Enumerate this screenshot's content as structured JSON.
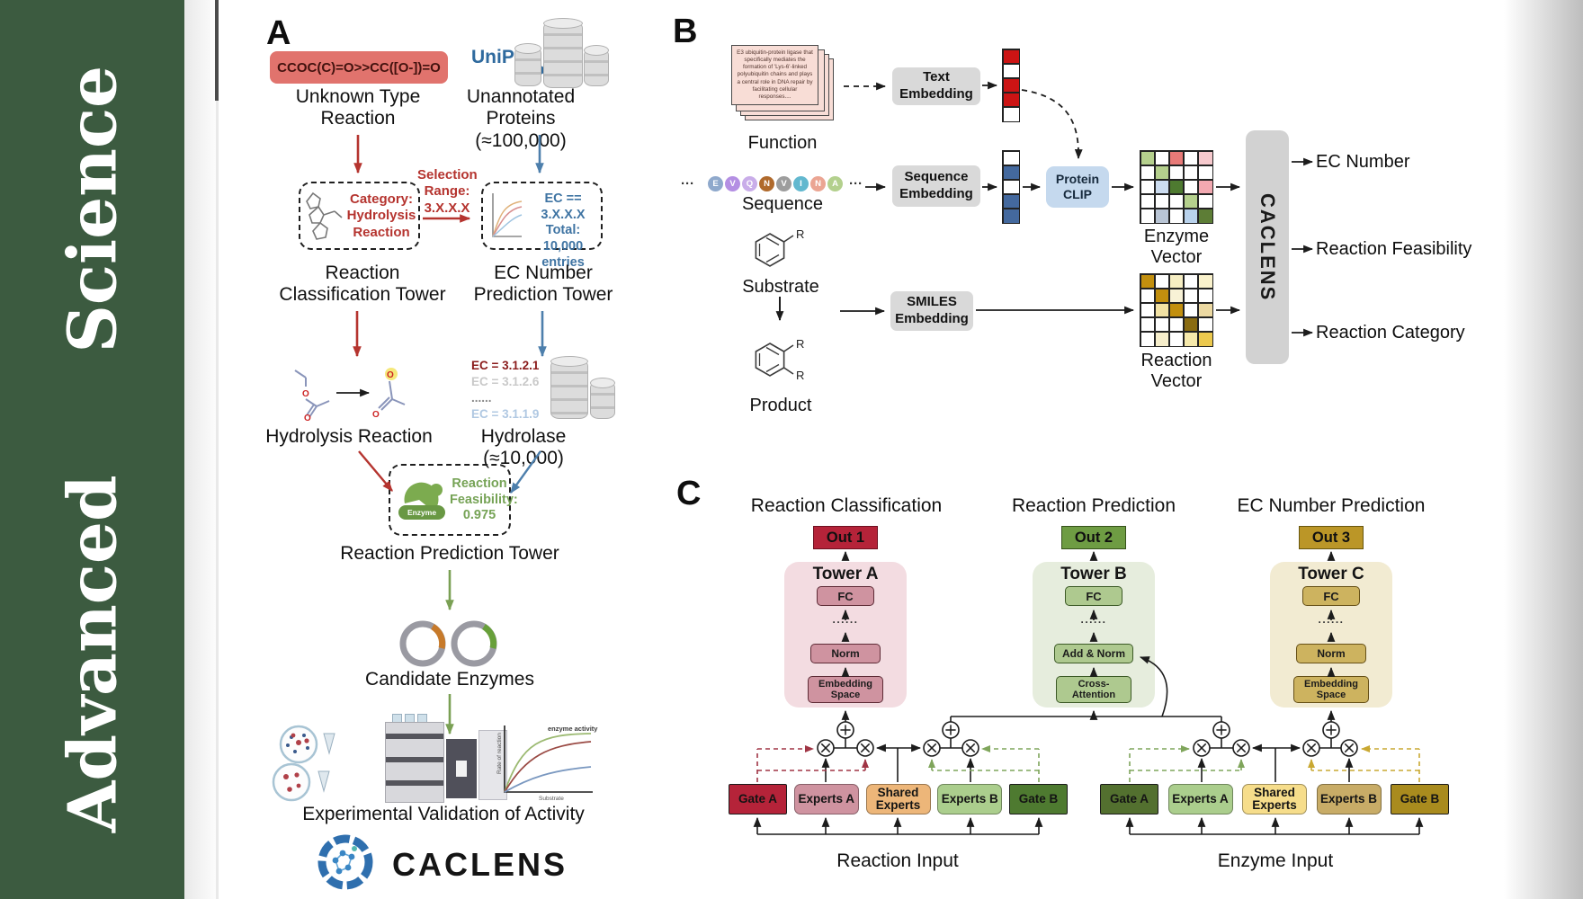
{
  "journal": {
    "name": "Advanced Science",
    "bar_color": "#3c5b40"
  },
  "panelA": {
    "label": "A",
    "smiles": "CCOC(C)=O>>CC([O-])=O",
    "unknown_reaction": "Unknown Type\nReaction",
    "uniprot": "UniProt",
    "unannotated": "Unannotated\nProteins (≈100,000)",
    "category_box": "Category:\nHydrolysis\nReaction",
    "selection": "Selection\nRange:\n3.X.X.X",
    "ec_box": "EC == 3.X.X.X\nTotal: 10,000\nentries",
    "classification_tower": "Reaction\nClassification Tower",
    "ec_tower": "EC Number\nPrediction Tower",
    "hydrolysis": "Hydrolysis Reaction",
    "ec_list": [
      {
        "text": "EC = 3.1.2.1",
        "color": "#8a1b1b"
      },
      {
        "text": "EC = 3.1.2.6",
        "color": "#c9c9c9"
      },
      {
        "text": "......",
        "color": "#8a8a8a"
      },
      {
        "text": "EC = 3.1.1.9",
        "color": "#b0c8e2"
      }
    ],
    "hydrolase": "Hydrolase (≈10,000)",
    "enzyme_icon_label": "Enzyme",
    "feasibility": "Reaction\nFeasibility:\n0.975",
    "prediction_tower": "Reaction Prediction Tower",
    "candidate": "Candidate Enzymes",
    "graph": {
      "ylabel": "Rate of reaction",
      "xlabel": "Substrate",
      "annotation": "enzyme activity"
    },
    "validation": "Experimental Validation of Activity",
    "brand": "CACLENS"
  },
  "panelB": {
    "label": "B",
    "function_card": "E3 ubiquitin-protein ligase that specifically mediates the formation of 'Lys-6'-linked polyubiquitin chains and plays a central role in DNA repair by facilitating cellular responses....",
    "function_label": "Function",
    "ellipsis": "···",
    "sequence_chips": [
      {
        "l": "E",
        "c": "#8fa9cc"
      },
      {
        "l": "V",
        "c": "#b48fe3"
      },
      {
        "l": "Q",
        "c": "#c9ade9"
      },
      {
        "l": "N",
        "c": "#b06a2c"
      },
      {
        "l": "V",
        "c": "#9d9d9d"
      },
      {
        "l": "I",
        "c": "#62b8cf"
      },
      {
        "l": "N",
        "c": "#eba593"
      },
      {
        "l": "A",
        "c": "#b3d08d"
      }
    ],
    "sequence_label": "Sequence",
    "substrate_label": "Substrate",
    "product_label": "Product",
    "r_label": "R",
    "text_embedding": "Text\nEmbedding",
    "sequence_embedding": "Sequence\nEmbedding",
    "smiles_embedding": "SMILES\nEmbedding",
    "protein_clip": "Protein\nCLIP",
    "text_vector": [
      "#cc1414",
      "#ffffff",
      "#cc1414",
      "#cc1414",
      "#ffffff"
    ],
    "sequence_vector": [
      "#ffffff",
      "#44699e",
      "#ffffff",
      "#44699e",
      "#44699e"
    ],
    "enzyme_vector": {
      "label": "Enzyme Vector",
      "cells": [
        [
          "#b5d08d",
          "#ffffff",
          "#e87a78",
          "#ffffff",
          "#f6c9cd"
        ],
        [
          "#ffffff",
          "#b5d08d",
          "#ffffff",
          "#ffffff",
          "#ffffff"
        ],
        [
          "#ffffff",
          "#ccdcf0",
          "#4e7a30",
          "#ffffff",
          "#f2a9b1"
        ],
        [
          "#ffffff",
          "#ffffff",
          "#ffffff",
          "#b5d08d",
          "#ffffff"
        ],
        [
          "#ffffff",
          "#b9c5d5",
          "#ffffff",
          "#b9d2ec",
          "#5d7d36"
        ]
      ]
    },
    "reaction_vector": {
      "label": "Reaction Vector",
      "cells": [
        [
          "#c28f0e",
          "#ffffff",
          "#f6eec3",
          "#ffffff",
          "#faf2cc"
        ],
        [
          "#ffffff",
          "#c28f0e",
          "#f8f2d6",
          "#ffffff",
          "#ffffff"
        ],
        [
          "#ffffff",
          "#f2e2a4",
          "#c28f0e",
          "#ffffff",
          "#ecd9a2"
        ],
        [
          "#ffffff",
          "#ffffff",
          "#ffffff",
          "#8a6c12",
          "#ffffff"
        ],
        [
          "#ffffff",
          "#f6eecb",
          "#ffffff",
          "#f6e9ab",
          "#ecc94e"
        ]
      ]
    },
    "caclens": "CACLENS",
    "outputs": [
      "EC Number",
      "Reaction Feasibility",
      "Reaction Category"
    ]
  },
  "panelC": {
    "label": "C",
    "headers": [
      "Reaction Classification",
      "Reaction Prediction",
      "EC Number Prediction"
    ],
    "dots": "......",
    "towers": [
      {
        "out": "Out 1",
        "name": "Tower A",
        "fc": "FC",
        "mid": "Norm",
        "base": "Embedding\nSpace"
      },
      {
        "out": "Out 2",
        "name": "Tower B",
        "fc": "FC",
        "mid": "Add & Norm",
        "base": "Cross-\nAttention"
      },
      {
        "out": "Out 3",
        "name": "Tower C",
        "fc": "FC",
        "mid": "Norm",
        "base": "Embedding\nSpace"
      }
    ],
    "groups": [
      {
        "caption": "Reaction Input",
        "boxes": [
          {
            "label": "Gate A",
            "bg": "#b52339"
          },
          {
            "label": "Experts A",
            "bg": "#cf93a0"
          },
          {
            "label": "Shared\nExperts",
            "bg": "#edb679"
          },
          {
            "label": "Experts B",
            "bg": "#abce8d"
          },
          {
            "label": "Gate B",
            "bg": "#4e7a30"
          }
        ]
      },
      {
        "caption": "Enzyme Input",
        "boxes": [
          {
            "label": "Gate A",
            "bg": "#53702f"
          },
          {
            "label": "Experts A",
            "bg": "#abce8d"
          },
          {
            "label": "Shared\nExperts",
            "bg": "#f6dd8b"
          },
          {
            "label": "Experts B",
            "bg": "#c8ac67"
          },
          {
            "label": "Gate B",
            "bg": "#a98b1e"
          }
        ]
      }
    ]
  }
}
